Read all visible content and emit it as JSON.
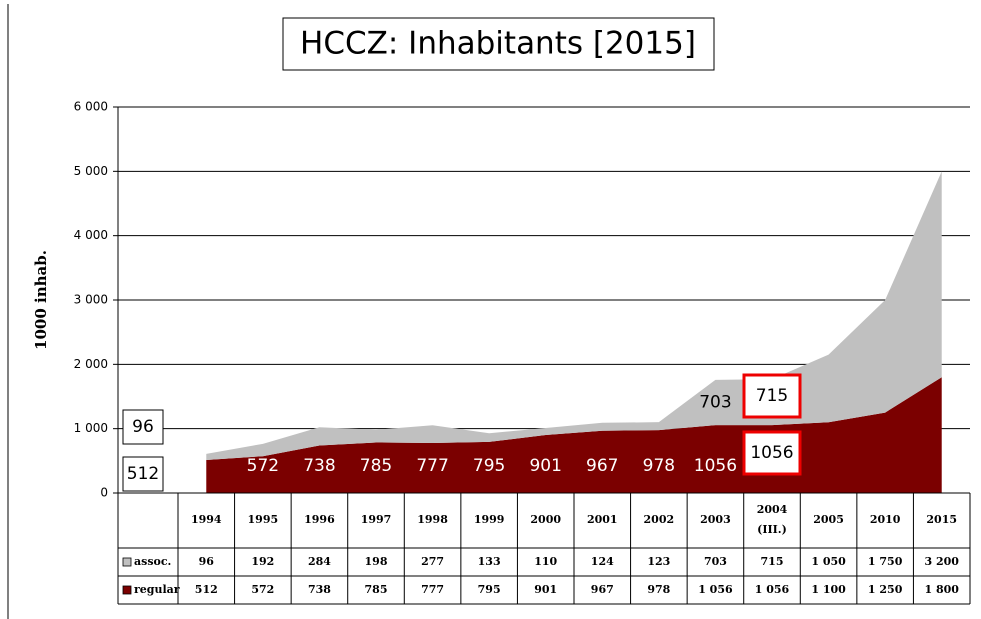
{
  "chart_data": {
    "type": "stacked_area",
    "title": "HCCZ: Inhabitants [2015]",
    "ylabel": "1000 inhab.",
    "categories": [
      "1994",
      "1995",
      "1996",
      "1997",
      "1998",
      "1999",
      "2000",
      "2001",
      "2002",
      "2003",
      "2004 (III.)",
      "2005",
      "2010",
      "2015"
    ],
    "ylim": [
      0,
      6000
    ],
    "yticks": [
      0,
      {
        "value": 1000,
        "label": "1 000"
      },
      {
        "value": 2000,
        "label": "2 000"
      },
      {
        "value": 3000,
        "label": "3 000"
      },
      {
        "value": 4000,
        "label": "4 000"
      },
      {
        "value": 5000,
        "label": "5 000"
      },
      {
        "value": 6000,
        "label": "6 000"
      }
    ],
    "grid": true,
    "series": [
      {
        "name": "assoc.",
        "color": "#c0c0c0",
        "values": [
          96,
          192,
          284,
          198,
          277,
          133,
          110,
          124,
          123,
          703,
          715,
          1050,
          1750,
          3200
        ],
        "value_labels": [
          "96",
          "192",
          "284",
          "198",
          "277",
          "133",
          "110",
          "124",
          "123",
          "703",
          "715",
          "1 050",
          "1 750",
          "3 200"
        ],
        "label_indices": [
          0,
          9,
          10
        ]
      },
      {
        "name": "regular",
        "color": "#7b0000",
        "values": [
          512,
          572,
          738,
          785,
          777,
          795,
          901,
          967,
          978,
          1056,
          1056,
          1100,
          1250,
          1800
        ],
        "value_labels": [
          "512",
          "572",
          "738",
          "785",
          "777",
          "795",
          "901",
          "967",
          "978",
          "1 056",
          "1 056",
          "1 100",
          "1 250",
          "1 800"
        ],
        "label_indices": [
          0,
          1,
          2,
          3,
          4,
          5,
          6,
          7,
          8,
          9,
          10
        ]
      }
    ]
  }
}
